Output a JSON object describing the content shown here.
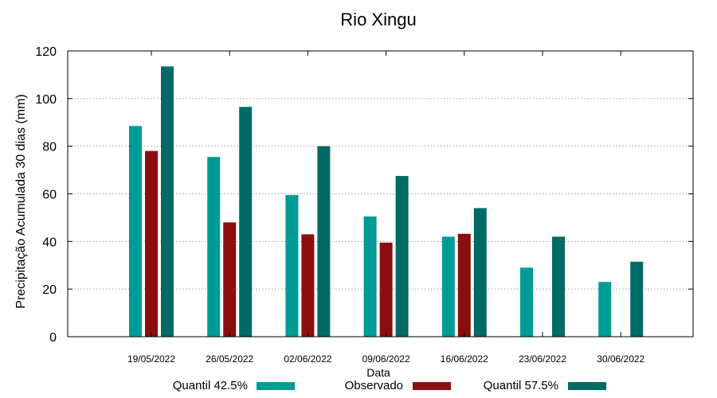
{
  "chart_data": {
    "type": "bar",
    "title": "Rio Xingu",
    "xlabel": "Data",
    "ylabel": "Precipitação Acumulada 30 dias (mm)",
    "ylim": [
      0,
      120
    ],
    "yticks": [
      0,
      20,
      40,
      60,
      80,
      100,
      120
    ],
    "grid": true,
    "legend_position": "bottom",
    "categories": [
      "19/05/2022",
      "26/05/2022",
      "02/06/2022",
      "09/06/2022",
      "16/06/2022",
      "23/06/2022",
      "30/06/2022"
    ],
    "series": [
      {
        "name": "Quantil 42.5%",
        "color": "#009b95",
        "values": [
          88.5,
          75.5,
          59.5,
          50.5,
          42,
          29,
          23
        ]
      },
      {
        "name": "Observado",
        "color": "#8b0e0e",
        "values": [
          78,
          48,
          43,
          39.5,
          43.2,
          null,
          null
        ]
      },
      {
        "name": "Quantil 57.5%",
        "color": "#006a66",
        "values": [
          113.5,
          96.5,
          80,
          67.5,
          54,
          42,
          31.5
        ]
      }
    ]
  }
}
